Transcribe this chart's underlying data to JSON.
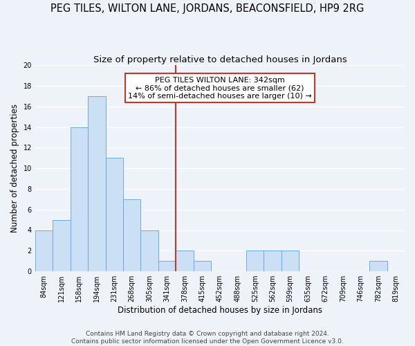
{
  "title": "PEG TILES, WILTON LANE, JORDANS, BEACONSFIELD, HP9 2RG",
  "subtitle": "Size of property relative to detached houses in Jordans",
  "xlabel": "Distribution of detached houses by size in Jordans",
  "ylabel": "Number of detached properties",
  "bin_labels": [
    "84sqm",
    "121sqm",
    "158sqm",
    "194sqm",
    "231sqm",
    "268sqm",
    "305sqm",
    "341sqm",
    "378sqm",
    "415sqm",
    "452sqm",
    "488sqm",
    "525sqm",
    "562sqm",
    "599sqm",
    "635sqm",
    "672sqm",
    "709sqm",
    "746sqm",
    "782sqm",
    "819sqm"
  ],
  "bar_heights": [
    4,
    5,
    14,
    17,
    11,
    7,
    4,
    1,
    2,
    1,
    0,
    0,
    2,
    2,
    2,
    0,
    0,
    0,
    0,
    1,
    0
  ],
  "bar_color": "#cce0f5",
  "bar_edge_color": "#6aabdb",
  "vline_color": "#c0392b",
  "annotation_text": "PEG TILES WILTON LANE: 342sqm\n← 86% of detached houses are smaller (62)\n14% of semi-detached houses are larger (10) →",
  "annotation_box_color": "#ffffff",
  "annotation_box_edgecolor": "#c0392b",
  "ylim": [
    0,
    20
  ],
  "yticks": [
    0,
    2,
    4,
    6,
    8,
    10,
    12,
    14,
    16,
    18,
    20
  ],
  "footer_line1": "Contains HM Land Registry data © Crown copyright and database right 2024.",
  "footer_line2": "Contains public sector information licensed under the Open Government Licence v3.0.",
  "background_color": "#eef2f9",
  "grid_color": "#ffffff",
  "title_fontsize": 10.5,
  "subtitle_fontsize": 9.5,
  "axis_label_fontsize": 8.5,
  "tick_fontsize": 7,
  "annotation_fontsize": 8,
  "footer_fontsize": 6.5
}
